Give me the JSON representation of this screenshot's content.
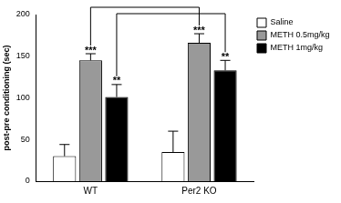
{
  "chart_data": {
    "type": "bar",
    "categories": [
      "WT",
      "Per2 KO"
    ],
    "series": [
      {
        "name": "Saline",
        "color": "#ffffff",
        "values": [
          30,
          35
        ],
        "errors": [
          14,
          25
        ]
      },
      {
        "name": "METH 0.5mg/kg",
        "color": "#999999",
        "values": [
          145,
          166
        ],
        "errors": [
          8,
          11
        ]
      },
      {
        "name": "METH 1mg/kg",
        "color": "#000000",
        "values": [
          101,
          133
        ],
        "errors": [
          15,
          12
        ]
      }
    ],
    "y_label": "post-pre conditioning (sec)",
    "ylim": [
      0,
      200
    ],
    "yticks": [
      0,
      50,
      100,
      150,
      200
    ],
    "grid": false,
    "legend": "upper right",
    "annotations": [
      {
        "category": "WT",
        "series": "METH 0.5mg/kg",
        "text": "***"
      },
      {
        "category": "WT",
        "series": "METH 1mg/kg",
        "text": "**"
      },
      {
        "category": "Per2 KO",
        "series": "METH 0.5mg/kg",
        "text": "***"
      },
      {
        "category": "Per2 KO",
        "series": "METH 1mg/kg",
        "text": "**"
      }
    ],
    "comparisons": [
      {
        "from": {
          "category": "WT",
          "series": "METH 0.5mg/kg"
        },
        "to": {
          "category": "Per2 KO",
          "series": "METH 0.5mg/kg"
        }
      },
      {
        "from": {
          "category": "WT",
          "series": "METH 1mg/kg"
        },
        "to": {
          "category": "Per2 KO",
          "series": "METH 1mg/kg"
        }
      }
    ]
  }
}
